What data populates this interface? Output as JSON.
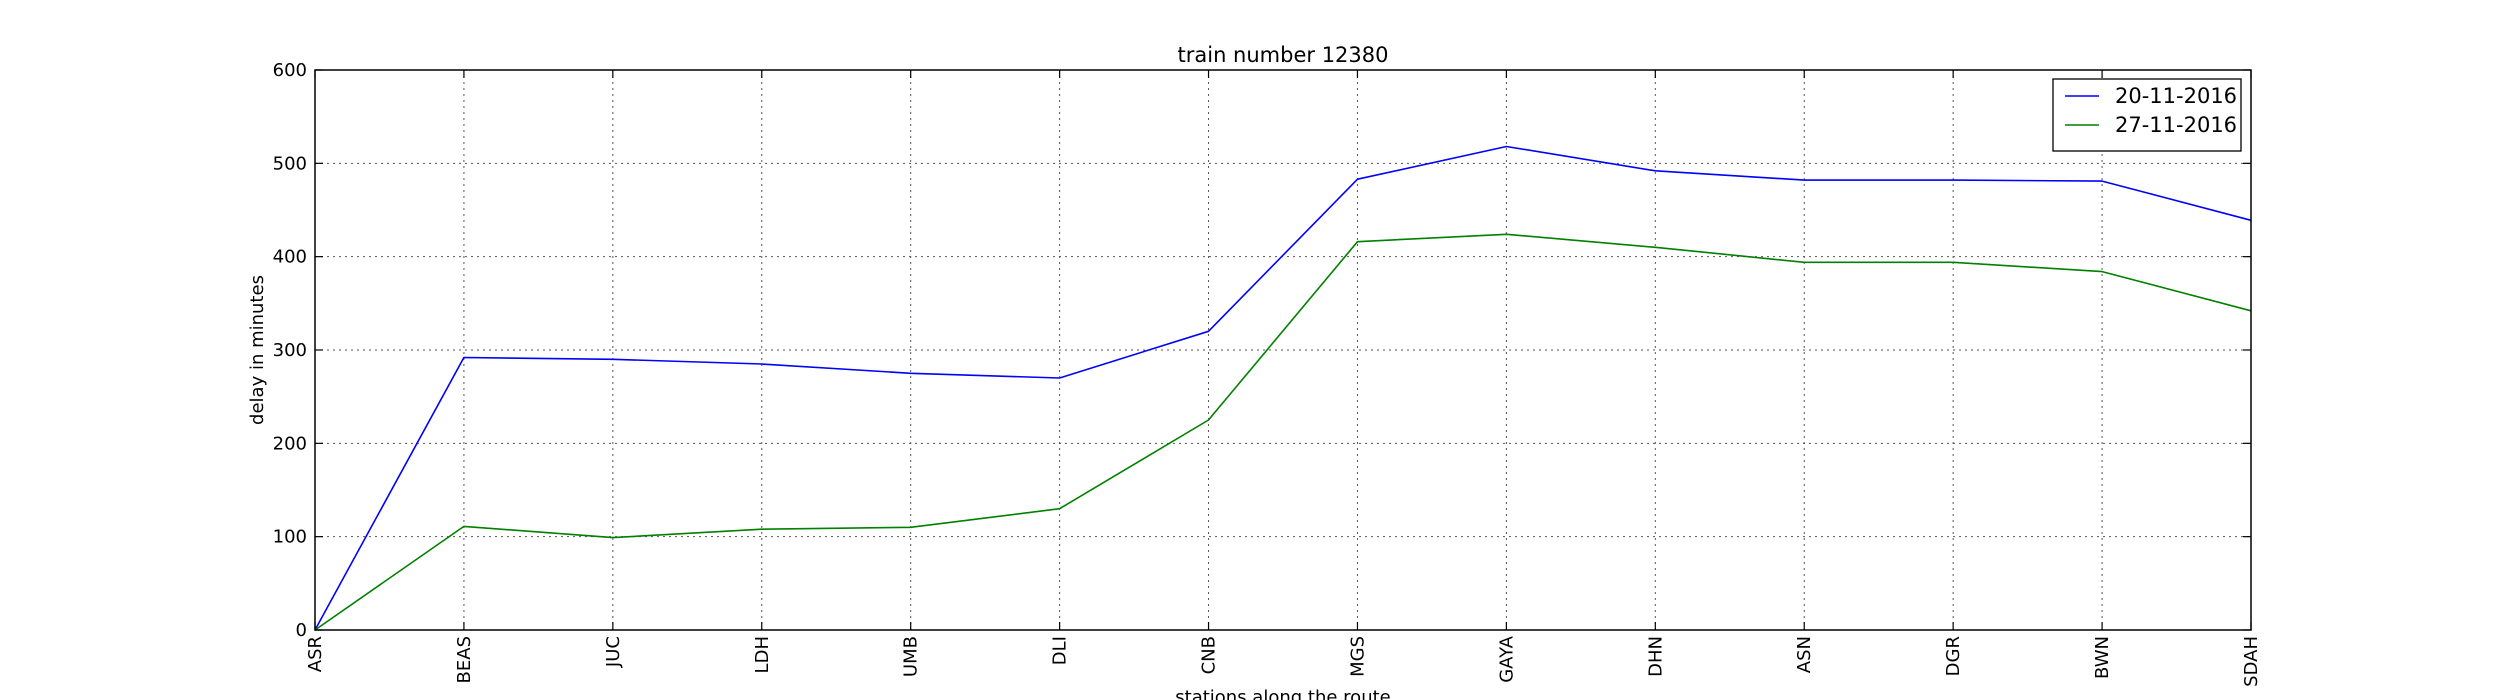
{
  "chart_data": {
    "type": "line",
    "title": "train number 12380",
    "xlabel": "stations along the route",
    "ylabel": "delay in minutes",
    "categories": [
      "ASR",
      "BEAS",
      "JUC",
      "LDH",
      "UMB",
      "DLI",
      "CNB",
      "MGS",
      "GAYA",
      "DHN",
      "ASN",
      "DGR",
      "BWN",
      "SDAH"
    ],
    "ylim": [
      0,
      600
    ],
    "yticks": [
      0,
      100,
      200,
      300,
      400,
      500,
      600
    ],
    "grid": true,
    "legend_position": "top-right",
    "series": [
      {
        "name": "20-11-2016",
        "color": "#0000ff",
        "values": [
          0,
          292,
          290,
          285,
          275,
          270,
          320,
          483,
          518,
          492,
          482,
          482,
          481,
          439
        ]
      },
      {
        "name": "27-11-2016",
        "color": "#008000",
        "values": [
          0,
          111,
          99,
          108,
          110,
          130,
          225,
          416,
          424,
          410,
          394,
          394,
          384,
          342
        ]
      }
    ]
  }
}
